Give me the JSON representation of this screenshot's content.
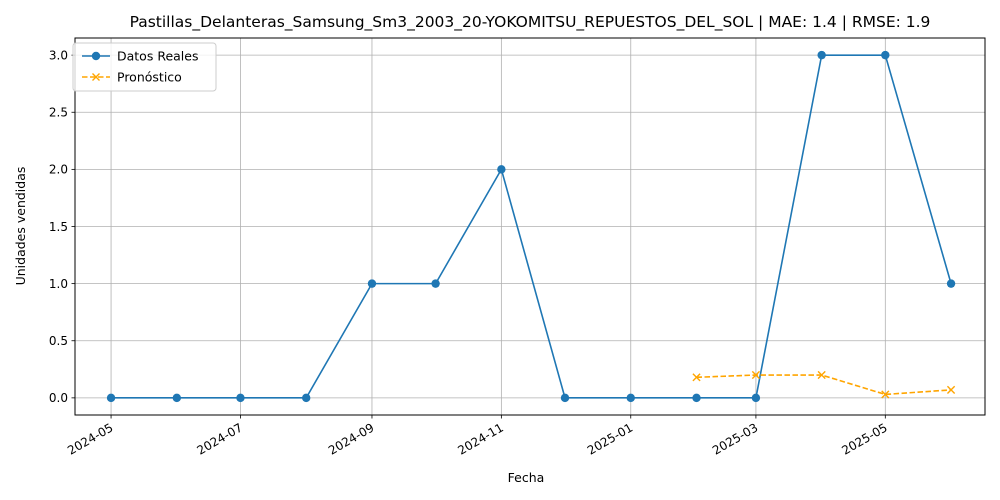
{
  "chart_data": {
    "type": "line",
    "title": "Pastillas_Delanteras_Samsung_Sm3_2003_20-YOKOMITSU_REPUESTOS_DEL_SOL | MAE: 1.4 | RMSE: 1.9",
    "xlabel": "Fecha",
    "ylabel": "Unidades vendidas",
    "xlim": [
      "2024-04-14",
      "2025-06-17"
    ],
    "ylim": [
      -0.15,
      3.15
    ],
    "x_ticks": [
      "2024-05",
      "2024-07",
      "2024-09",
      "2024-11",
      "2025-01",
      "2025-03",
      "2025-05"
    ],
    "y_ticks": [
      "0.0",
      "0.5",
      "1.0",
      "1.5",
      "2.0",
      "2.5",
      "3.0"
    ],
    "grid": true,
    "legend_position": "top-left",
    "series": [
      {
        "name": "Datos Reales",
        "color": "#1f77b4",
        "marker": "circle",
        "line_style": "solid",
        "x": [
          "2024-05-01",
          "2024-06-01",
          "2024-07-01",
          "2024-08-01",
          "2024-09-01",
          "2024-10-01",
          "2024-11-01",
          "2024-12-01",
          "2025-01-01",
          "2025-02-01",
          "2025-03-01",
          "2025-04-01",
          "2025-05-01",
          "2025-06-01"
        ],
        "values": [
          0,
          0,
          0,
          0,
          1,
          1,
          2,
          0,
          0,
          0,
          0,
          3,
          3,
          1
        ]
      },
      {
        "name": "Pronóstico",
        "color": "#ffa500",
        "marker": "x",
        "line_style": "dashed",
        "x": [
          "2025-02-01",
          "2025-03-01",
          "2025-04-01",
          "2025-05-01",
          "2025-06-01"
        ],
        "values": [
          0.18,
          0.2,
          0.2,
          0.03,
          0.07
        ]
      }
    ]
  }
}
